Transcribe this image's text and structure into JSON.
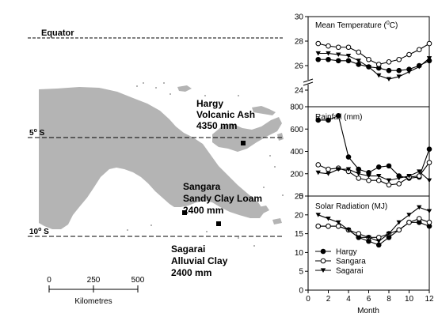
{
  "map": {
    "equator_label": "Equator",
    "lat5_label": "5",
    "lat10_label": "10",
    "lat_deg_sup": "o",
    "lat_suffix": " S",
    "sites": [
      {
        "name": "Hargy",
        "soil": "Volcanic Ash",
        "rain": "4350 mm"
      },
      {
        "name": "Sangara",
        "soil": "Sandy Clay Loam",
        "rain": "2400 mm"
      },
      {
        "name": "Sagarai",
        "soil": "Alluvial Clay",
        "rain": "2400 mm"
      }
    ],
    "scale": {
      "ticks": [
        "0",
        "250",
        "500"
      ],
      "label": "Kilometres"
    },
    "land_color": "#b4b4b4"
  },
  "chart_data": [
    {
      "type": "line",
      "title": "Mean Temperature (",
      "title_sup": "0",
      "title_end": "C)",
      "x": [
        1,
        2,
        3,
        4,
        5,
        6,
        7,
        8,
        9,
        10,
        11,
        12
      ],
      "ylim": [
        24,
        30
      ],
      "y_ticks": [
        "24",
        "26",
        "28",
        "30"
      ],
      "axis_break": true,
      "series": [
        {
          "name": "Hargy",
          "marker": "circle-filled",
          "values": [
            26.5,
            26.5,
            26.4,
            26.4,
            26.1,
            25.9,
            25.8,
            25.6,
            25.6,
            25.7,
            26.0,
            26.4
          ]
        },
        {
          "name": "Sangara",
          "marker": "circle-open",
          "values": [
            27.8,
            27.6,
            27.5,
            27.5,
            27.1,
            26.5,
            26.1,
            26.3,
            26.5,
            26.9,
            27.3,
            27.8
          ]
        },
        {
          "name": "Sagarai",
          "marker": "triangle-down",
          "values": [
            27.0,
            27.0,
            26.9,
            26.8,
            26.4,
            25.9,
            25.2,
            24.9,
            25.1,
            25.5,
            25.9,
            26.6
          ]
        }
      ]
    },
    {
      "type": "line",
      "title": "Rainfall (mm)",
      "x": [
        1,
        2,
        3,
        4,
        5,
        6,
        7,
        8,
        9,
        10,
        11,
        12
      ],
      "ylim": [
        0,
        800
      ],
      "y_ticks": [
        "0",
        "200",
        "400",
        "600",
        "800"
      ],
      "series": [
        {
          "name": "Hargy",
          "marker": "circle-filled",
          "values": [
            680,
            680,
            720,
            350,
            240,
            210,
            260,
            270,
            180,
            160,
            170,
            420
          ]
        },
        {
          "name": "Sangara",
          "marker": "circle-open",
          "values": [
            280,
            240,
            250,
            220,
            160,
            140,
            140,
            100,
            110,
            170,
            180,
            300
          ]
        },
        {
          "name": "Sagarai",
          "marker": "triangle-down",
          "values": [
            210,
            200,
            240,
            240,
            200,
            180,
            180,
            140,
            160,
            180,
            220,
            140
          ]
        }
      ]
    },
    {
      "type": "line",
      "title": "Solar Radiation (MJ)",
      "x": [
        1,
        2,
        3,
        4,
        5,
        6,
        7,
        8,
        9,
        10,
        11,
        12
      ],
      "xlabel": "Month",
      "ylim": [
        0,
        25
      ],
      "y_ticks": [
        "0",
        "5",
        "10",
        "15",
        "20",
        "25"
      ],
      "x_ticks": [
        "0",
        "2",
        "4",
        "6",
        "8",
        "10",
        "12"
      ],
      "legend_position": "bottom-left",
      "series": [
        {
          "name": "Hargy",
          "marker": "circle-filled",
          "values": [
            17,
            17,
            17,
            16,
            14,
            13,
            12,
            14,
            16,
            18,
            18,
            17
          ]
        },
        {
          "name": "Sangara",
          "marker": "circle-open",
          "values": [
            17,
            17,
            17,
            16,
            15,
            14,
            14,
            15,
            16,
            18,
            19,
            18
          ]
        },
        {
          "name": "Sagarai",
          "marker": "triangle-down",
          "values": [
            20,
            19,
            18,
            16,
            14,
            14,
            13,
            15,
            18,
            20,
            22,
            21
          ]
        }
      ]
    }
  ]
}
